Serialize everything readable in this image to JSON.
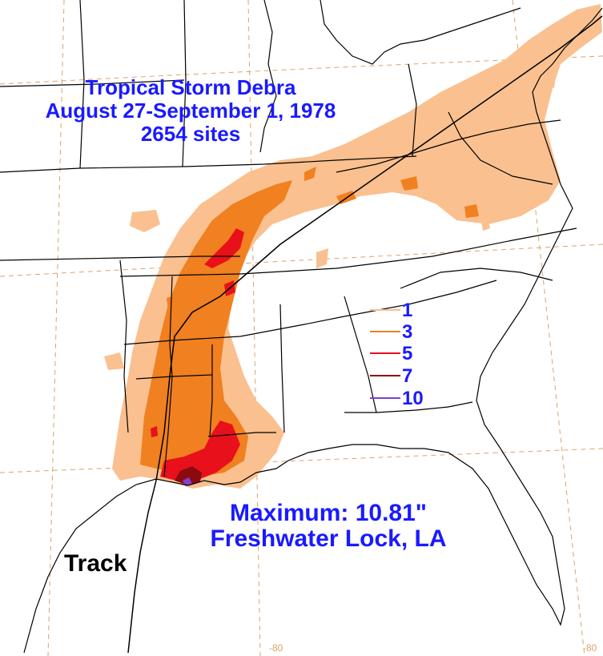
{
  "title": {
    "line1": "Tropical Storm Debra",
    "line2": "August 27-September 1, 1978",
    "line3": "2654 sites"
  },
  "maximum": {
    "line1": "Maximum:  10.81\"",
    "line2": "Freshwater Lock, LA"
  },
  "track_label": "Track",
  "legend": [
    {
      "label": "1",
      "color": "#fac08f"
    },
    {
      "label": "3",
      "color": "#f08020"
    },
    {
      "label": "5",
      "color": "#e8101a"
    },
    {
      "label": "7",
      "color": "#8b0a10"
    },
    {
      "label": "10",
      "color": "#8040d0"
    }
  ],
  "longitude_ticks": [
    "-80",
    "-80"
  ],
  "colors": {
    "text": "#1a1aff",
    "outline": "#000000",
    "graticule": "#d9a46b"
  }
}
